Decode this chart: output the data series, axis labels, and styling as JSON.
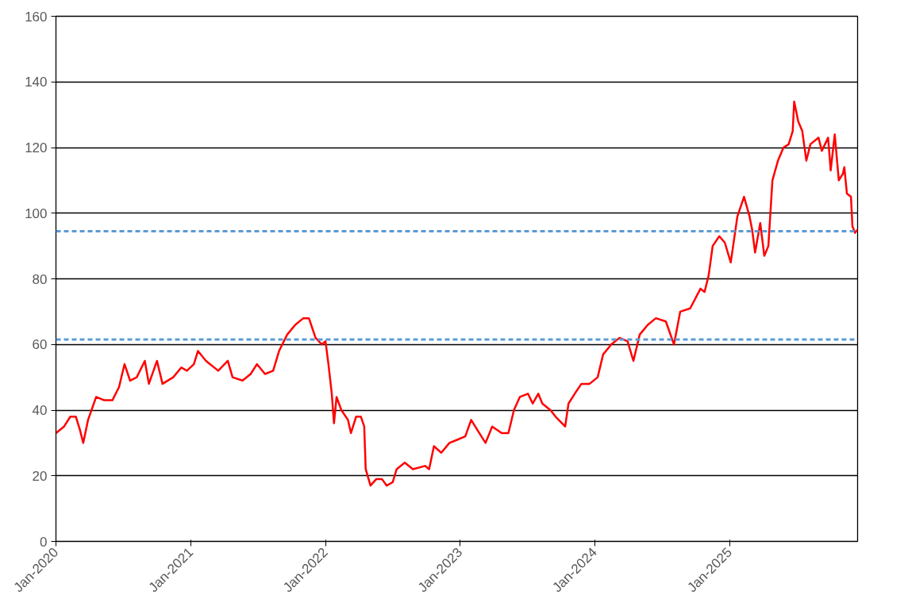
{
  "chart_data": {
    "type": "line",
    "x": [
      "2020-01-01",
      "2020-01-23",
      "2020-02-09",
      "2020-02-24",
      "2020-03-06",
      "2020-03-15",
      "2020-03-28",
      "2020-04-19",
      "2020-05-11",
      "2020-06-02",
      "2020-06-20",
      "2020-07-05",
      "2020-07-20",
      "2020-08-07",
      "2020-08-29",
      "2020-09-09",
      "2020-10-01",
      "2020-10-16",
      "2020-11-14",
      "2020-12-06",
      "2020-12-21",
      "2021-01-09",
      "2021-01-20",
      "2021-02-11",
      "2021-03-16",
      "2021-04-11",
      "2021-04-24",
      "2021-05-21",
      "2021-06-12",
      "2021-06-29",
      "2021-07-21",
      "2021-08-12",
      "2021-08-28",
      "2021-09-19",
      "2021-10-11",
      "2021-11-02",
      "2021-11-17",
      "2021-12-05",
      "2021-12-22",
      "2022-01-01",
      "2022-01-09",
      "2022-01-18",
      "2022-01-24",
      "2022-01-31",
      "2022-02-13",
      "2022-03-03",
      "2022-03-11",
      "2022-03-25",
      "2022-04-07",
      "2022-04-16",
      "2022-04-20",
      "2022-05-03",
      "2022-05-19",
      "2022-06-03",
      "2022-06-16",
      "2022-07-02",
      "2022-07-13",
      "2022-08-04",
      "2022-08-26",
      "2022-09-28",
      "2022-10-09",
      "2022-10-22",
      "2022-11-11",
      "2022-12-03",
      "2022-12-25",
      "2023-01-15",
      "2023-01-31",
      "2023-02-22",
      "2023-03-11",
      "2023-03-29",
      "2023-04-24",
      "2023-05-12",
      "2023-05-27",
      "2023-06-12",
      "2023-07-04",
      "2023-07-17",
      "2023-08-01",
      "2023-08-12",
      "2023-09-03",
      "2023-09-17",
      "2023-10-13",
      "2023-10-22",
      "2023-11-08",
      "2023-11-26",
      "2023-12-18",
      "2024-01-09",
      "2024-01-24",
      "2024-02-15",
      "2024-03-08",
      "2024-03-30",
      "2024-04-15",
      "2024-05-02",
      "2024-05-24",
      "2024-06-15",
      "2024-07-12",
      "2024-08-03",
      "2024-08-20",
      "2024-09-16",
      "2024-10-14",
      "2024-10-25",
      "2024-11-05",
      "2024-11-16",
      "2024-12-04",
      "2024-12-19",
      "2025-01-04",
      "2025-01-22",
      "2025-02-09",
      "2025-02-24",
      "2025-03-03",
      "2025-03-11",
      "2025-03-25",
      "2025-04-05",
      "2025-04-16",
      "2025-04-27",
      "2025-05-12",
      "2025-05-27",
      "2025-06-10",
      "2025-06-21",
      "2025-06-25",
      "2025-07-06",
      "2025-07-17",
      "2025-07-28",
      "2025-08-08",
      "2025-08-30",
      "2025-09-08",
      "2025-09-25",
      "2025-10-02",
      "2025-10-13",
      "2025-10-24",
      "2025-11-04",
      "2025-11-08",
      "2025-11-15",
      "2025-11-26",
      "2025-11-30",
      "2025-12-07",
      "2025-12-14"
    ],
    "series": [
      {
        "color": "#ff0000",
        "values": [
          33,
          35,
          38,
          38,
          34,
          30,
          37,
          44,
          43,
          43,
          47,
          54,
          49,
          50,
          55,
          48,
          55,
          48,
          50,
          53,
          52,
          54,
          58,
          55,
          52,
          55,
          50,
          49,
          51,
          54,
          51,
          52,
          58,
          63,
          66,
          68,
          68,
          62,
          60,
          61,
          54,
          45,
          36,
          44,
          40,
          37,
          33,
          38,
          38,
          35,
          22,
          17,
          19,
          19,
          17,
          18,
          22,
          24,
          22,
          23,
          22,
          29,
          27,
          30,
          31,
          32,
          37,
          33,
          30,
          35,
          33,
          33,
          40,
          44,
          45,
          42,
          45,
          42,
          40,
          38,
          35,
          42,
          45,
          48,
          48,
          50,
          57,
          60,
          62,
          61,
          55,
          63,
          66,
          68,
          67,
          60,
          70,
          71,
          77,
          76,
          81,
          90,
          93,
          91,
          85,
          99,
          105,
          99,
          95,
          88,
          97,
          87,
          90,
          110,
          116,
          120,
          121,
          125,
          134,
          128,
          125,
          116,
          121,
          123,
          119,
          123,
          113,
          124,
          110,
          112,
          114,
          106,
          105,
          96,
          94,
          95
        ]
      }
    ],
    "xlim": [
      "2020-01-01",
      "2025-12-14"
    ],
    "xticks": [
      {
        "value": "2020-01-01",
        "label": "Jan-2020"
      },
      {
        "value": "2021-01-01",
        "label": "Jan-2021"
      },
      {
        "value": "2022-01-01",
        "label": "Jan-2022"
      },
      {
        "value": "2023-01-01",
        "label": "Jan-2023"
      },
      {
        "value": "2024-01-01",
        "label": "Jan-2024"
      },
      {
        "value": "2025-01-01",
        "label": "Jan-2025"
      }
    ],
    "ylim": [
      0,
      160
    ],
    "yticks": [
      0,
      20,
      40,
      60,
      80,
      100,
      120,
      140,
      160
    ],
    "ref_lines": [
      {
        "axis": "y",
        "value": 61.5,
        "color": "#5b9bd5",
        "line_style": "dashed"
      },
      {
        "axis": "y",
        "value": 94.5,
        "color": "#5b9bd5",
        "line_style": "dashed"
      }
    ],
    "grid": "y",
    "marker": "none",
    "line_style": "solid"
  }
}
